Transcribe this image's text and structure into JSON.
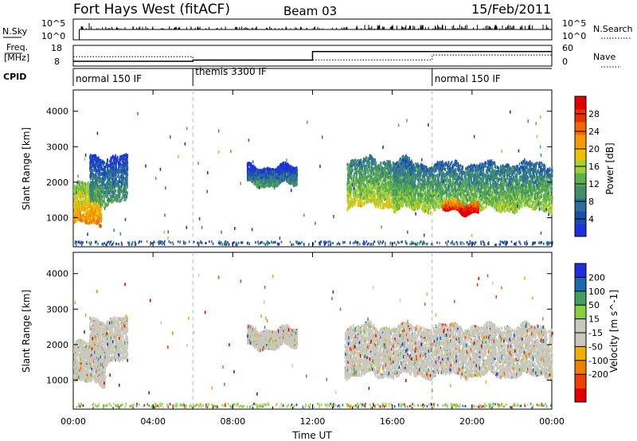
{
  "header": {
    "station": "Fort Hays West (fitACF)",
    "beam": "Beam 03",
    "date": "15/Feb/2011"
  },
  "labels": {
    "nsky": "N.Sky",
    "nsearch": "N.Search",
    "freq_line1": "Freq.",
    "freq_line2": "[MHz]",
    "nave": "Nave",
    "cpid": "CPID",
    "noise_tick_hi": "10^5",
    "noise_tick_lo": "10^0",
    "freq_tick_hi": "18",
    "freq_tick_lo": "8",
    "nave_tick_hi": "60",
    "nave_tick_lo": "0"
  },
  "colors": {
    "power_scale": [
      "#1f2fe0",
      "#1a4db0",
      "#2e6e9a",
      "#3f8f6a",
      "#5fb04a",
      "#9fd23a",
      "#f0c000",
      "#f59a00",
      "#f06a00",
      "#e83000",
      "#e00000"
    ],
    "velocity_scale": [
      "#e00000",
      "#f04000",
      "#f08000",
      "#f0b000",
      "#c8c8bd",
      "#c8c8bd",
      "#88d040",
      "#40a060",
      "#1a6ab0",
      "#1f2fe0"
    ],
    "ground_scatter": "#c8c8bd"
  },
  "chart_data": [
    {
      "type": "line",
      "name": "noise-panel",
      "series": [
        {
          "name": "N.Sky",
          "style": "solid",
          "level": "10^2 to 10^3",
          "x_hours": [
            0,
            0.3,
            0.3,
            24
          ],
          "y_log": [
            0,
            0,
            2.5,
            2.5
          ]
        },
        {
          "name": "N.Search",
          "style": "dotted"
        }
      ],
      "ylim_log": [
        0,
        5
      ]
    },
    {
      "type": "line",
      "name": "freq-nave-panel",
      "freq": {
        "x_hours": [
          0,
          6,
          6,
          12,
          12,
          24
        ],
        "y_mhz": [
          10.3,
          10.3,
          10.9,
          10.9,
          15.0,
          15.0
        ],
        "ylim": [
          8,
          18
        ]
      },
      "nave": {
        "x_hours": [
          0,
          6,
          6,
          18,
          18,
          24
        ],
        "y": [
          27,
          27,
          18,
          18,
          32,
          32
        ],
        "ylim": [
          0,
          60
        ]
      }
    },
    {
      "type": "table",
      "name": "cpid-segments",
      "segments": [
        {
          "label": "normal 150 IF",
          "start_hour": 0,
          "end_hour": 6
        },
        {
          "label": "themis 3300 IF",
          "start_hour": 6,
          "end_hour": 18
        },
        {
          "label": "normal 150 IF",
          "start_hour": 18,
          "end_hour": 24
        }
      ]
    },
    {
      "type": "heatmap",
      "name": "power",
      "ylabel": "Slant Range [km]",
      "ylim": [
        180,
        4600
      ],
      "yticks": [
        1000,
        2000,
        3000,
        4000
      ],
      "colorbar": {
        "label": "Power [dB]",
        "range": [
          0,
          32
        ],
        "ticks": [
          4,
          8,
          12,
          16,
          20,
          24,
          28
        ]
      },
      "scatter_regions": [
        {
          "t_start": 0.0,
          "t_end": 1.4,
          "r_low": 800,
          "r_high": 1900,
          "level_db": 18
        },
        {
          "t_start": 0.8,
          "t_end": 2.7,
          "r_low": 1400,
          "r_high": 2700,
          "level_db": 6
        },
        {
          "t_start": 8.7,
          "t_end": 11.2,
          "r_low": 1900,
          "r_high": 2400,
          "level_db": 5
        },
        {
          "t_start": 13.7,
          "t_end": 17.0,
          "r_low": 1300,
          "r_high": 2600,
          "level_db": 12
        },
        {
          "t_start": 16.0,
          "t_end": 24.0,
          "r_low": 1200,
          "r_high": 2500,
          "level_db": 10
        },
        {
          "t_start": 18.5,
          "t_end": 20.3,
          "r_low": 1150,
          "r_high": 1400,
          "level_db": 26
        }
      ]
    },
    {
      "type": "heatmap",
      "name": "velocity",
      "ylabel": "Slant Range [km]",
      "ylim": [
        180,
        4600
      ],
      "yticks": [
        1000,
        2000,
        3000,
        4000
      ],
      "colorbar": {
        "label": "Velocity [m s^-1]",
        "ticks": [
          "200",
          "100",
          "50",
          "15",
          "-15",
          "-50",
          "-100",
          "-200"
        ]
      },
      "ground_scatter_regions": [
        {
          "t_start": 0.0,
          "t_end": 1.6,
          "r_low": 900,
          "r_high": 2000
        },
        {
          "t_start": 0.8,
          "t_end": 2.7,
          "r_low": 1500,
          "r_high": 2700
        },
        {
          "t_start": 8.7,
          "t_end": 11.2,
          "r_low": 1900,
          "r_high": 2400
        },
        {
          "t_start": 13.6,
          "t_end": 24.0,
          "r_low": 1100,
          "r_high": 2500
        }
      ]
    }
  ],
  "xaxis": {
    "label": "Time UT",
    "range_hours": [
      0,
      24
    ],
    "ticks": [
      {
        "h": 0,
        "label": "00:00"
      },
      {
        "h": 4,
        "label": "04:00"
      },
      {
        "h": 8,
        "label": "08:00"
      },
      {
        "h": 12,
        "label": "12:00"
      },
      {
        "h": 16,
        "label": "16:00"
      },
      {
        "h": 20,
        "label": "20:00"
      },
      {
        "h": 24,
        "label": "00:00"
      }
    ],
    "cpid_boundaries_hours": [
      6,
      18
    ]
  }
}
